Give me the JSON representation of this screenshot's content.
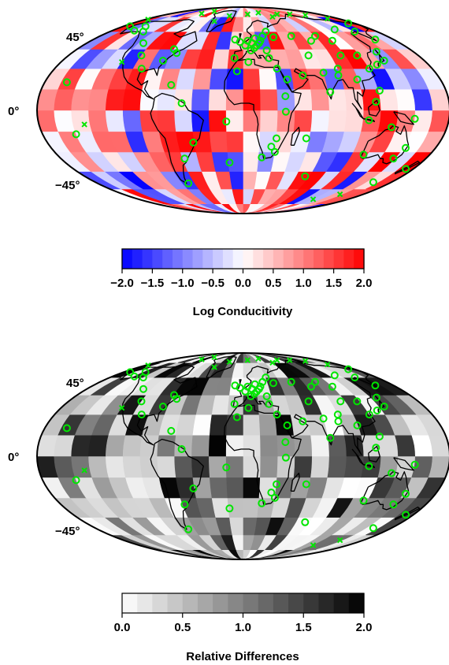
{
  "chart_data": [
    {
      "type": "heatmap",
      "projection": "mollweide",
      "title": "",
      "lat_labels": [
        "45°",
        "0°",
        "−45°"
      ],
      "lat_values": [
        45,
        0,
        -45
      ],
      "colorbar": {
        "label": "Log Conducitivity",
        "range": [
          -2.0,
          2.0
        ],
        "ticks": [
          "−2.0",
          "−1.5",
          "−1.0",
          "−0.5",
          "0.0",
          "0.5",
          "1.0",
          "1.5",
          "2.0"
        ],
        "colors": [
          "#0000ff",
          "#ffffff",
          "#ff0000"
        ]
      },
      "grid_cell_size_deg": 15,
      "observatory_marker_color": "#00e600"
    },
    {
      "type": "heatmap",
      "projection": "mollweide",
      "title": "",
      "lat_labels": [
        "45°",
        "0°",
        "−45°"
      ],
      "lat_values": [
        45,
        0,
        -45
      ],
      "colorbar": {
        "label": "Relative Differences",
        "range": [
          0.0,
          2.0
        ],
        "ticks": [
          "0.0",
          "0.5",
          "1.0",
          "1.5",
          "2.0"
        ],
        "colors": [
          "#ffffff",
          "#000000"
        ]
      },
      "grid_cell_size_deg": 15,
      "observatory_marker_color": "#00e600"
    }
  ]
}
